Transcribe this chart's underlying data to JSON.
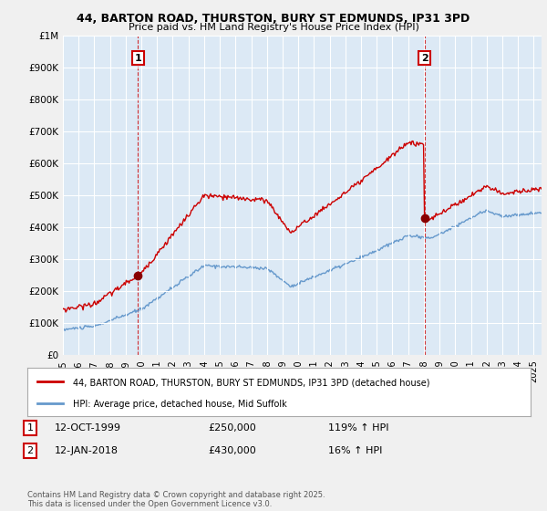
{
  "title_line1": "44, BARTON ROAD, THURSTON, BURY ST EDMUNDS, IP31 3PD",
  "title_line2": "Price paid vs. HM Land Registry's House Price Index (HPI)",
  "legend_label_red": "44, BARTON ROAD, THURSTON, BURY ST EDMUNDS, IP31 3PD (detached house)",
  "legend_label_blue": "HPI: Average price, detached house, Mid Suffolk",
  "annotation1_date": "12-OCT-1999",
  "annotation1_price": "£250,000",
  "annotation1_hpi": "119% ↑ HPI",
  "annotation2_date": "12-JAN-2018",
  "annotation2_price": "£430,000",
  "annotation2_hpi": "16% ↑ HPI",
  "footer": "Contains HM Land Registry data © Crown copyright and database right 2025.\nThis data is licensed under the Open Government Licence v3.0.",
  "red_color": "#cc0000",
  "blue_color": "#6699cc",
  "background_color": "#f0f0f0",
  "plot_bg_color": "#dce9f5",
  "grid_color": "#ffffff",
  "ylim": [
    0,
    1000000
  ],
  "xlim_start": 1995.0,
  "xlim_end": 2025.5,
  "sale1_year": 1999.79,
  "sale1_price": 250000,
  "sale2_year": 2018.04,
  "sale2_price": 430000
}
